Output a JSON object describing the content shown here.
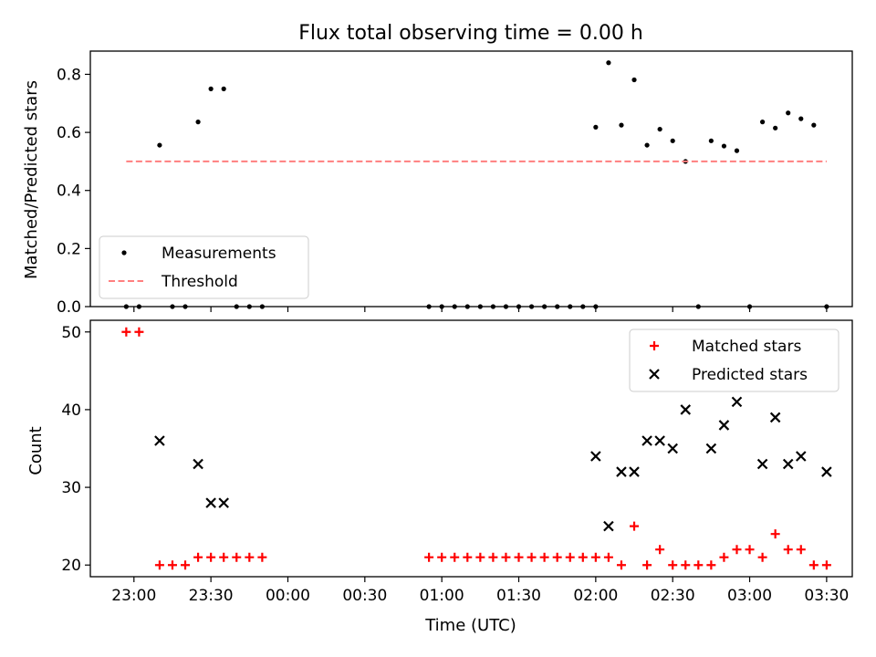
{
  "figure": {
    "title": "Flux total observing time = 0.00 h",
    "xlabel": "Time (UTC)",
    "xticks": [
      {
        "t": -60,
        "label": "23:00"
      },
      {
        "t": -30,
        "label": "23:30"
      },
      {
        "t": 0,
        "label": "00:00"
      },
      {
        "t": 30,
        "label": "00:30"
      },
      {
        "t": 60,
        "label": "01:00"
      },
      {
        "t": 90,
        "label": "01:30"
      },
      {
        "t": 120,
        "label": "02:00"
      },
      {
        "t": 150,
        "label": "02:30"
      },
      {
        "t": 180,
        "label": "03:00"
      },
      {
        "t": 210,
        "label": "03:30"
      }
    ],
    "xlim": [
      -77,
      220
    ]
  },
  "chart_data": [
    {
      "type": "scatter",
      "ylabel": "Matched/Predicted stars",
      "ylim": [
        0,
        0.88
      ],
      "yticks": [
        "0.0",
        "0.2",
        "0.4",
        "0.6",
        "0.8"
      ],
      "legend": {
        "placement": "lower-left",
        "entries": [
          "Measurements",
          "Threshold"
        ]
      },
      "series": [
        {
          "name": "Measurements",
          "marker": "dot",
          "color": "#000000",
          "x": [
            -63,
            -58,
            -50,
            -45,
            -40,
            -35,
            -30,
            -25,
            -20,
            -15,
            -10,
            55,
            60,
            65,
            70,
            75,
            80,
            85,
            90,
            95,
            100,
            105,
            110,
            115,
            120,
            120,
            125,
            130,
            135,
            140,
            145,
            150,
            155,
            160,
            165,
            170,
            175,
            180,
            185,
            190,
            195,
            200,
            205,
            210
          ],
          "y": [
            0,
            0,
            0.556,
            0,
            0,
            0.636,
            0.75,
            0.75,
            0,
            0,
            0,
            0,
            0,
            0,
            0,
            0,
            0,
            0,
            0,
            0,
            0,
            0,
            0,
            0,
            0,
            0.618,
            0.84,
            0.625,
            0.781,
            0.556,
            0.611,
            0.571,
            0.5,
            0,
            0.571,
            0.553,
            0.537,
            0,
            0.636,
            0.615,
            0.667,
            0.647,
            0.625,
            0
          ]
        },
        {
          "name": "Threshold",
          "style": "dashed",
          "color": "#ff7f7f",
          "x": [
            -63,
            210
          ],
          "y": [
            0.5,
            0.5
          ]
        }
      ]
    },
    {
      "type": "scatter",
      "ylabel": "Count",
      "ylim": [
        18.5,
        51.5
      ],
      "yticks": [
        "20",
        "30",
        "40",
        "50"
      ],
      "legend": {
        "placement": "upper-right",
        "entries": [
          "Matched stars",
          "Predicted stars"
        ]
      },
      "series": [
        {
          "name": "Matched stars",
          "marker": "plus",
          "color": "#ff0000",
          "x": [
            -63,
            -58,
            -50,
            -45,
            -40,
            -35,
            -30,
            -25,
            -20,
            -15,
            -10,
            55,
            60,
            65,
            70,
            75,
            80,
            85,
            90,
            95,
            100,
            105,
            110,
            115,
            120,
            125,
            130,
            135,
            140,
            145,
            150,
            155,
            160,
            165,
            170,
            175,
            180,
            185,
            190,
            195,
            200,
            205,
            210
          ],
          "y": [
            50,
            50,
            20,
            20,
            20,
            21,
            21,
            21,
            21,
            21,
            21,
            21,
            21,
            21,
            21,
            21,
            21,
            21,
            21,
            21,
            21,
            21,
            21,
            21,
            21,
            21,
            20,
            25,
            20,
            22,
            20,
            20,
            20,
            20,
            21,
            22,
            22,
            21,
            24,
            22,
            22,
            20,
            20
          ]
        },
        {
          "name": "Predicted stars",
          "marker": "x",
          "color": "#000000",
          "x": [
            -50,
            -35,
            -30,
            -25,
            120,
            125,
            130,
            135,
            140,
            145,
            150,
            155,
            165,
            170,
            175,
            185,
            190,
            195,
            200,
            210
          ],
          "y": [
            36,
            33,
            28,
            28,
            34,
            25,
            32,
            32,
            36,
            36,
            35,
            40,
            35,
            38,
            41,
            33,
            39,
            33,
            34,
            32
          ]
        }
      ]
    }
  ]
}
